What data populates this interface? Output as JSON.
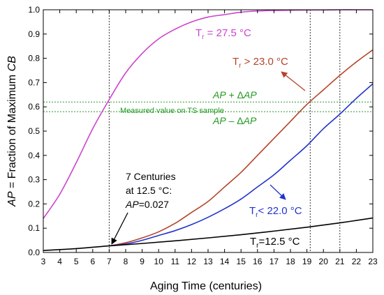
{
  "chart_data": {
    "type": "line",
    "xlabel": "Aging Time (centuries)",
    "ylabel": {
      "prefix": "AP",
      "middle": " = Fraction of Maximum ",
      "suffix": "CB"
    },
    "xlim": [
      3,
      23
    ],
    "ylim": [
      0,
      1.0
    ],
    "xticks": [
      3,
      4,
      5,
      6,
      7,
      8,
      9,
      10,
      11,
      12,
      13,
      14,
      15,
      16,
      17,
      18,
      19,
      20,
      21,
      22,
      23
    ],
    "yticks": [
      0.0,
      0.1,
      0.2,
      0.3,
      0.4,
      0.5,
      0.6,
      0.7,
      0.8,
      0.9,
      1.0
    ],
    "grid": false,
    "series": [
      {
        "name": "Tr = 27.5 °C",
        "color": "#cc44cc",
        "x": [
          3,
          4,
          5,
          6,
          7,
          8,
          9,
          10,
          11,
          12,
          13,
          14,
          15,
          16,
          17,
          18,
          19,
          20,
          21,
          22,
          23
        ],
        "y": [
          0.14,
          0.24,
          0.37,
          0.51,
          0.63,
          0.74,
          0.82,
          0.88,
          0.92,
          0.95,
          0.97,
          0.98,
          0.99,
          0.995,
          0.997,
          0.998,
          0.999,
          0.999,
          1.0,
          1.0,
          1.0
        ]
      },
      {
        "name": "Tr > 23.0 °C",
        "color": "#b4442a",
        "x": [
          7,
          8,
          9,
          10,
          11,
          12,
          13,
          14,
          15,
          16,
          17,
          18,
          19,
          20,
          21,
          22,
          23
        ],
        "y": [
          0.027,
          0.04,
          0.06,
          0.085,
          0.12,
          0.165,
          0.21,
          0.27,
          0.33,
          0.4,
          0.47,
          0.54,
          0.61,
          0.67,
          0.73,
          0.785,
          0.835
        ]
      },
      {
        "name": "Tr< 22.0 °C",
        "color": "#2233cc",
        "x": [
          7,
          8,
          9,
          10,
          11,
          12,
          13,
          14,
          15,
          16,
          17,
          18,
          19,
          20,
          21,
          22,
          23
        ],
        "y": [
          0.027,
          0.035,
          0.05,
          0.07,
          0.09,
          0.115,
          0.145,
          0.18,
          0.22,
          0.27,
          0.32,
          0.38,
          0.44,
          0.51,
          0.57,
          0.635,
          0.695
        ]
      },
      {
        "name": "Tr=12.5 °C",
        "color": "#000000",
        "x": [
          3,
          5,
          7,
          9,
          11,
          13,
          15,
          17,
          19,
          21,
          23
        ],
        "y": [
          0.008,
          0.016,
          0.027,
          0.037,
          0.048,
          0.06,
          0.073,
          0.088,
          0.104,
          0.122,
          0.142
        ]
      }
    ],
    "hlines": [
      {
        "y": 0.62,
        "color": "#229922"
      },
      {
        "y": 0.58,
        "color": "#229922"
      }
    ],
    "vlines": [
      7,
      19.2,
      21
    ],
    "annotations": {
      "t27_sub": "r",
      "t27_rest": " = 27.5 °C",
      "t23_sub": "r",
      "t23_rest": " > 23.0 °C",
      "t22_sub": "r",
      "t22_rest": "< 22.0 °C",
      "t12_sub": "r",
      "t12_rest": "=12.5 °C",
      "upper_band": {
        "it": "AP",
        "mid": " + Δ",
        "it2": "AP"
      },
      "lower_band": {
        "it": "AP",
        "mid": " – Δ",
        "it2": "AP"
      },
      "measured": "Measured value on TS sample",
      "centuries_line1": "7 Centuries",
      "centuries_line2": "at 12.5 °C:",
      "centuries_line3_it": "AP",
      "centuries_line3_rest": "=0.027"
    },
    "colors": {
      "green": "#229922",
      "magenta": "#cc44cc",
      "brown": "#b4442a",
      "blue": "#2233cc"
    }
  }
}
